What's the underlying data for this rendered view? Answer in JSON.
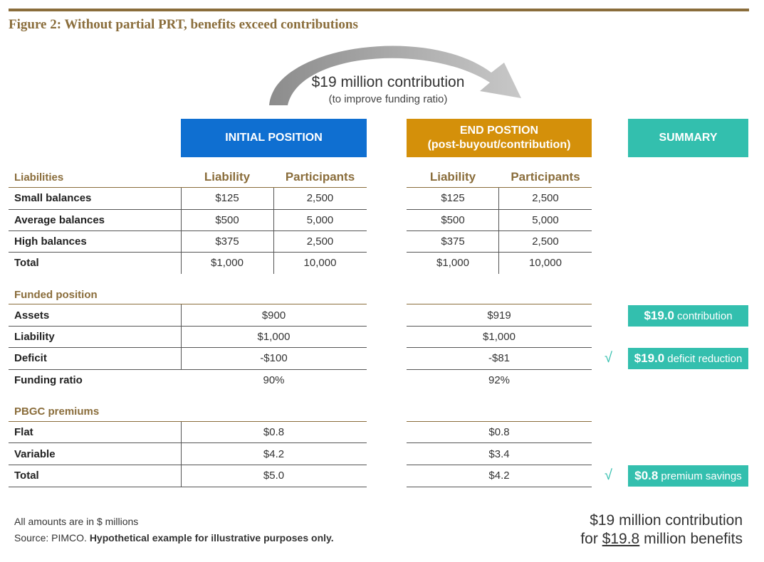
{
  "figure_title": "Figure 2: Without partial PRT, benefits exceed contributions",
  "arrow": {
    "title": "$19 million contribution",
    "subtitle": "(to improve funding ratio)"
  },
  "headers": {
    "initial": "INITIAL POSITION",
    "end_line1": "END POSTION",
    "end_line2": "(post-buyout/contribution)",
    "summary": "SUMMARY"
  },
  "liabilities": {
    "section": "Liabilities",
    "col_liability": "Liability",
    "col_participants": "Participants",
    "rows": [
      {
        "label": "Small balances",
        "init_liab": "$125",
        "init_part": "2,500",
        "end_liab": "$125",
        "end_part": "2,500"
      },
      {
        "label": "Average balances",
        "init_liab": "$500",
        "init_part": "5,000",
        "end_liab": "$500",
        "end_part": "5,000"
      },
      {
        "label": "High balances",
        "init_liab": "$375",
        "init_part": "2,500",
        "end_liab": "$375",
        "end_part": "2,500"
      },
      {
        "label": "Total",
        "init_liab": "$1,000",
        "init_part": "10,000",
        "end_liab": "$1,000",
        "end_part": "10,000"
      }
    ]
  },
  "funded": {
    "section": "Funded position",
    "rows": [
      {
        "label": "Assets",
        "init": "$900",
        "end": "$919"
      },
      {
        "label": "Liability",
        "init": "$1,000",
        "end": "$1,000"
      },
      {
        "label": "Deficit",
        "init": "-$100",
        "end": "-$81"
      },
      {
        "label": "Funding ratio",
        "init": "90%",
        "end": "92%"
      }
    ]
  },
  "pbgc": {
    "section": "PBGC premiums",
    "rows": [
      {
        "label": "Flat",
        "init": "$0.8",
        "end": "$0.8"
      },
      {
        "label": "Variable",
        "init": "$4.2",
        "end": "$3.4"
      },
      {
        "label": "Total",
        "init": "$5.0",
        "end": "$4.2"
      }
    ]
  },
  "summary": {
    "contribution_value": "$19.0",
    "contribution_text": "contribution",
    "deficit_value": "$19.0",
    "deficit_text": "deficit reduction",
    "premium_value": "$0.8",
    "premium_text": "premium savings",
    "check": "√"
  },
  "footer": {
    "note": "All amounts are in $ millions",
    "source_prefix": "Source: PIMCO.",
    "source_bold": "Hypothetical example for illustrative purposes only."
  },
  "conclusion": {
    "line1": "$19 million contribution",
    "line2_prefix": "for",
    "line2_value": "$19.8",
    "line2_suffix": "million benefits"
  },
  "colors": {
    "initial_header": "#0f6fd1",
    "end_header": "#d4900a",
    "summary": "#33bfae",
    "accent": "#8a6d3b"
  }
}
